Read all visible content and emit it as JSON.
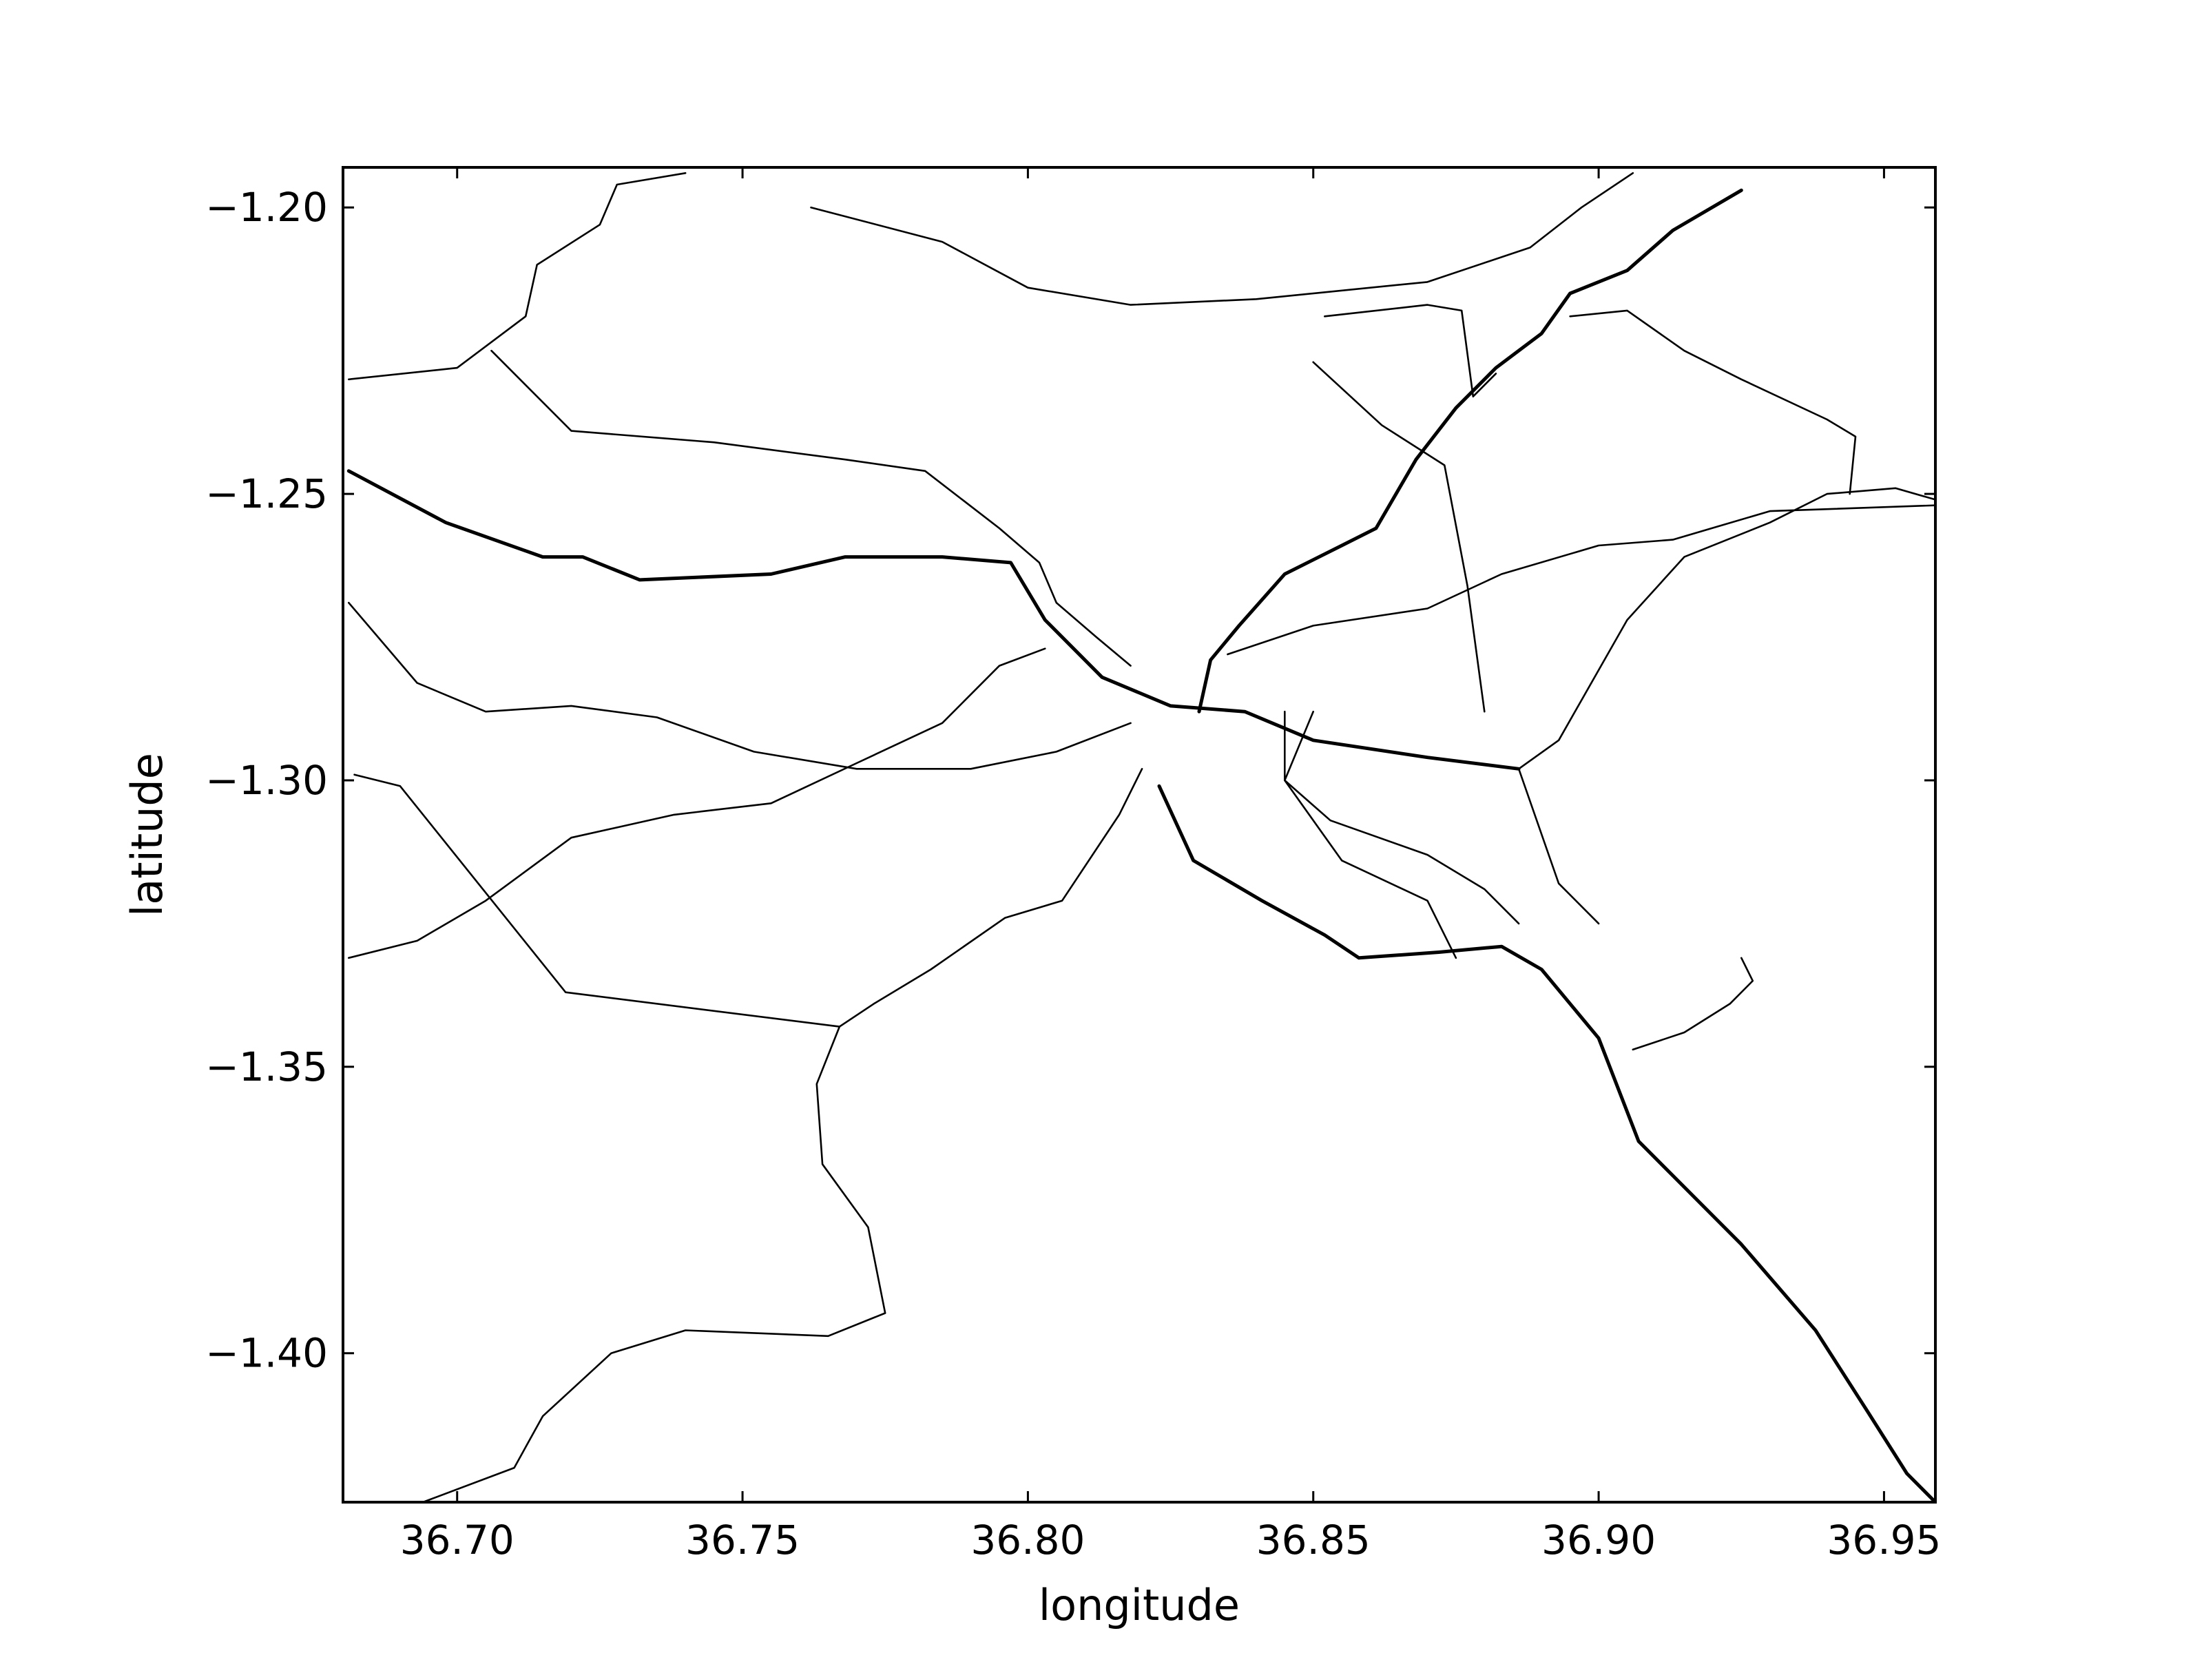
{
  "chart_data": {
    "type": "line",
    "title": "",
    "xlabel": "longitude",
    "ylabel": "latitude",
    "xlim": [
      36.68,
      36.959
    ],
    "ylim": [
      -1.426,
      -1.193
    ],
    "x_ticks": [
      36.7,
      36.75,
      36.8,
      36.85,
      36.9,
      36.95
    ],
    "x_tick_labels": [
      "36.70",
      "36.75",
      "36.80",
      "36.85",
      "36.90",
      "36.95"
    ],
    "y_ticks": [
      -1.2,
      -1.25,
      -1.3,
      -1.35,
      -1.4
    ],
    "y_tick_labels": [
      "−1.20",
      "−1.25",
      "−1.30",
      "−1.35",
      "−1.40"
    ],
    "grid": false,
    "legend": null,
    "line_color": "#000000",
    "series": [
      {
        "weight": "major",
        "points": [
          [
            36.681,
            -1.246
          ],
          [
            36.698,
            -1.255
          ],
          [
            36.715,
            -1.261
          ],
          [
            36.722,
            -1.261
          ],
          [
            36.732,
            -1.265
          ],
          [
            36.755,
            -1.264
          ],
          [
            36.768,
            -1.261
          ],
          [
            36.785,
            -1.261
          ],
          [
            36.797,
            -1.262
          ],
          [
            36.803,
            -1.272
          ],
          [
            36.813,
            -1.282
          ],
          [
            36.825,
            -1.287
          ],
          [
            36.838,
            -1.288
          ],
          [
            36.85,
            -1.293
          ],
          [
            36.87,
            -1.296
          ],
          [
            36.886,
            -1.298
          ]
        ]
      },
      {
        "weight": "major",
        "points": [
          [
            36.823,
            -1.301
          ],
          [
            36.829,
            -1.314
          ],
          [
            36.841,
            -1.321
          ],
          [
            36.852,
            -1.327
          ],
          [
            36.858,
            -1.331
          ],
          [
            36.872,
            -1.33
          ],
          [
            36.883,
            -1.329
          ],
          [
            36.89,
            -1.333
          ],
          [
            36.9,
            -1.345
          ],
          [
            36.907,
            -1.363
          ],
          [
            36.913,
            -1.369
          ],
          [
            36.925,
            -1.381
          ],
          [
            36.938,
            -1.396
          ],
          [
            36.947,
            -1.41
          ],
          [
            36.954,
            -1.421
          ],
          [
            36.959,
            -1.426
          ]
        ]
      },
      {
        "weight": "major",
        "points": [
          [
            36.83,
            -1.288
          ],
          [
            36.832,
            -1.279
          ],
          [
            36.837,
            -1.273
          ],
          [
            36.845,
            -1.264
          ],
          [
            36.855,
            -1.259
          ],
          [
            36.861,
            -1.256
          ],
          [
            36.868,
            -1.244
          ],
          [
            36.875,
            -1.235
          ],
          [
            36.882,
            -1.228
          ],
          [
            36.89,
            -1.222
          ],
          [
            36.895,
            -1.215
          ],
          [
            36.905,
            -1.211
          ],
          [
            36.913,
            -1.204
          ],
          [
            36.925,
            -1.197
          ]
        ]
      },
      {
        "weight": "minor",
        "points": [
          [
            36.681,
            -1.23
          ],
          [
            36.7,
            -1.228
          ],
          [
            36.712,
            -1.219
          ],
          [
            36.714,
            -1.21
          ],
          [
            36.725,
            -1.203
          ],
          [
            36.728,
            -1.196
          ],
          [
            36.74,
            -1.194
          ]
        ]
      },
      {
        "weight": "minor",
        "points": [
          [
            36.762,
            -1.2
          ],
          [
            36.785,
            -1.206
          ],
          [
            36.8,
            -1.214
          ],
          [
            36.818,
            -1.217
          ],
          [
            36.84,
            -1.216
          ],
          [
            36.87,
            -1.213
          ],
          [
            36.888,
            -1.207
          ],
          [
            36.897,
            -1.2
          ],
          [
            36.906,
            -1.194
          ]
        ]
      },
      {
        "weight": "minor",
        "points": [
          [
            36.706,
            -1.225
          ],
          [
            36.72,
            -1.239
          ],
          [
            36.745,
            -1.241
          ],
          [
            36.768,
            -1.244
          ],
          [
            36.782,
            -1.246
          ],
          [
            36.795,
            -1.256
          ],
          [
            36.802,
            -1.262
          ],
          [
            36.805,
            -1.269
          ],
          [
            36.812,
            -1.275
          ],
          [
            36.818,
            -1.28
          ]
        ]
      },
      {
        "weight": "minor",
        "points": [
          [
            36.681,
            -1.269
          ],
          [
            36.693,
            -1.283
          ],
          [
            36.705,
            -1.288
          ],
          [
            36.72,
            -1.287
          ],
          [
            36.735,
            -1.289
          ],
          [
            36.752,
            -1.295
          ],
          [
            36.77,
            -1.298
          ],
          [
            36.79,
            -1.298
          ],
          [
            36.805,
            -1.295
          ],
          [
            36.818,
            -1.29
          ]
        ]
      },
      {
        "weight": "minor",
        "points": [
          [
            36.681,
            -1.331
          ],
          [
            36.693,
            -1.328
          ],
          [
            36.705,
            -1.321
          ],
          [
            36.72,
            -1.31
          ],
          [
            36.738,
            -1.306
          ],
          [
            36.755,
            -1.304
          ],
          [
            36.77,
            -1.297
          ],
          [
            36.785,
            -1.29
          ],
          [
            36.795,
            -1.28
          ],
          [
            36.803,
            -1.277
          ]
        ]
      },
      {
        "weight": "minor",
        "points": [
          [
            36.682,
            -1.299
          ],
          [
            36.69,
            -1.301
          ],
          [
            36.719,
            -1.337
          ],
          [
            36.767,
            -1.343
          ],
          [
            36.773,
            -1.339
          ],
          [
            36.783,
            -1.333
          ],
          [
            36.796,
            -1.324
          ],
          [
            36.806,
            -1.321
          ],
          [
            36.816,
            -1.306
          ],
          [
            36.82,
            -1.298
          ]
        ]
      },
      {
        "weight": "minor",
        "points": [
          [
            36.767,
            -1.343
          ],
          [
            36.763,
            -1.353
          ],
          [
            36.764,
            -1.367
          ],
          [
            36.772,
            -1.378
          ],
          [
            36.775,
            -1.393
          ],
          [
            36.765,
            -1.397
          ],
          [
            36.74,
            -1.396
          ],
          [
            36.727,
            -1.4
          ],
          [
            36.715,
            -1.411
          ],
          [
            36.71,
            -1.42
          ],
          [
            36.694,
            -1.426
          ]
        ]
      },
      {
        "weight": "minor",
        "points": [
          [
            36.85,
            -1.288
          ],
          [
            36.845,
            -1.3
          ],
          [
            36.853,
            -1.307
          ],
          [
            36.87,
            -1.313
          ],
          [
            36.88,
            -1.319
          ],
          [
            36.886,
            -1.325
          ]
        ]
      },
      {
        "weight": "minor",
        "points": [
          [
            36.835,
            -1.278
          ],
          [
            36.85,
            -1.273
          ],
          [
            36.87,
            -1.27
          ],
          [
            36.883,
            -1.264
          ],
          [
            36.9,
            -1.259
          ],
          [
            36.913,
            -1.258
          ],
          [
            36.93,
            -1.253
          ],
          [
            36.959,
            -1.252
          ]
        ]
      },
      {
        "weight": "minor",
        "points": [
          [
            36.886,
            -1.298
          ],
          [
            36.893,
            -1.293
          ],
          [
            36.905,
            -1.272
          ],
          [
            36.915,
            -1.261
          ],
          [
            36.93,
            -1.255
          ],
          [
            36.94,
            -1.25
          ],
          [
            36.952,
            -1.249
          ],
          [
            36.959,
            -1.251
          ]
        ]
      },
      {
        "weight": "minor",
        "points": [
          [
            36.882,
            -1.229
          ],
          [
            36.878,
            -1.233
          ],
          [
            36.876,
            -1.218
          ],
          [
            36.87,
            -1.217
          ],
          [
            36.852,
            -1.219
          ]
        ]
      },
      {
        "weight": "minor",
        "points": [
          [
            36.895,
            -1.219
          ],
          [
            36.905,
            -1.218
          ],
          [
            36.915,
            -1.225
          ],
          [
            36.925,
            -1.23
          ],
          [
            36.94,
            -1.237
          ],
          [
            36.945,
            -1.24
          ],
          [
            36.944,
            -1.25
          ]
        ]
      },
      {
        "weight": "minor",
        "points": [
          [
            36.88,
            -1.288
          ],
          [
            36.877,
            -1.266
          ],
          [
            36.873,
            -1.245
          ],
          [
            36.862,
            -1.238
          ],
          [
            36.85,
            -1.227
          ]
        ]
      },
      {
        "weight": "minor",
        "points": [
          [
            36.845,
            -1.288
          ],
          [
            36.845,
            -1.3
          ],
          [
            36.855,
            -1.314
          ],
          [
            36.87,
            -1.321
          ],
          [
            36.875,
            -1.331
          ]
        ]
      },
      {
        "weight": "minor",
        "points": [
          [
            36.886,
            -1.298
          ],
          [
            36.893,
            -1.318
          ],
          [
            36.9,
            -1.325
          ]
        ]
      },
      {
        "weight": "minor",
        "points": [
          [
            36.906,
            -1.347
          ],
          [
            36.915,
            -1.344
          ],
          [
            36.923,
            -1.339
          ],
          [
            36.927,
            -1.335
          ],
          [
            36.925,
            -1.331
          ]
        ]
      }
    ]
  }
}
